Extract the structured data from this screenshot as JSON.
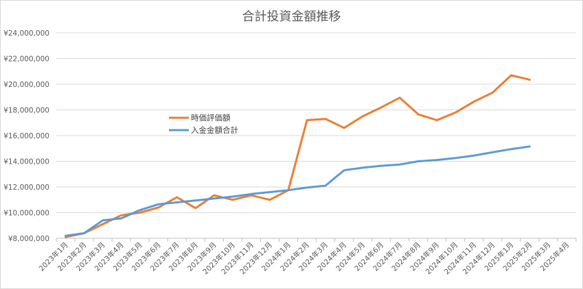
{
  "chart_data": {
    "type": "line",
    "title": "合計投資金額推移",
    "xlabel": "",
    "ylabel": "",
    "ylim": [
      8000000,
      24000000
    ],
    "y_ticks": [
      "¥8,000,000",
      "¥10,000,000",
      "¥12,000,000",
      "¥14,000,000",
      "¥16,000,000",
      "¥18,000,000",
      "¥20,000,000",
      "¥22,000,000",
      "¥24,000,000"
    ],
    "grid": true,
    "legend_position": "inside-left",
    "categories": [
      "2023年1月",
      "2023年2月",
      "2023年3月",
      "2023年4月",
      "2023年5月",
      "2023年6月",
      "2023年7月",
      "2023年8月",
      "2023年9月",
      "2023年10月",
      "2023年11月",
      "2023年12月",
      "2024年1月",
      "2024年2月",
      "2024年3月",
      "2024年4月",
      "2024年5月",
      "2024年6月",
      "2024年7月",
      "2024年8月",
      "2024年9月",
      "2024年10月",
      "2024年11月",
      "2024年12月",
      "2025年1月",
      "2025年2月",
      "2025年3月",
      "2025年4月"
    ],
    "series": [
      {
        "name": "時価評価額",
        "color": "#ed7d31",
        "values": [
          8100000,
          8400000,
          9100000,
          9800000,
          10000000,
          10400000,
          11200000,
          10350000,
          11350000,
          11000000,
          11350000,
          11000000,
          11750000,
          17200000,
          17300000,
          16600000,
          17500000,
          18200000,
          18950000,
          17650000,
          17200000,
          17800000,
          18650000,
          19350000,
          20700000,
          20350000,
          null,
          null
        ]
      },
      {
        "name": "入金金額合計",
        "color": "#5b9bd5",
        "values": [
          8200000,
          8400000,
          9400000,
          9550000,
          10200000,
          10650000,
          10800000,
          10950000,
          11100000,
          11250000,
          11450000,
          11600000,
          11750000,
          11950000,
          12100000,
          13300000,
          13500000,
          13650000,
          13750000,
          14000000,
          14100000,
          14250000,
          14450000,
          14700000,
          14950000,
          15150000,
          null,
          null
        ]
      }
    ]
  },
  "legend": {
    "items": [
      {
        "label": "時価評価額",
        "color": "#ed7d31"
      },
      {
        "label": "入金金額合計",
        "color": "#5b9bd5"
      }
    ]
  }
}
